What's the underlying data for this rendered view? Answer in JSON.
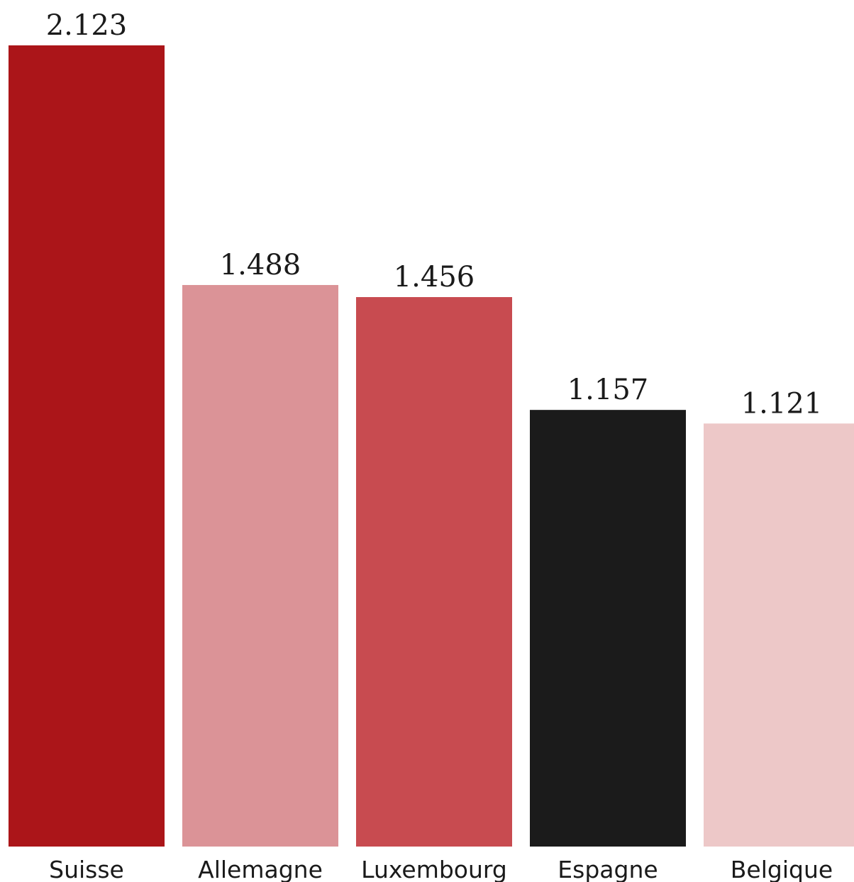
{
  "chart_data": {
    "type": "bar",
    "categories": [
      "Suisse",
      "Allemagne",
      "Luxembourg",
      "Espagne",
      "Belgique"
    ],
    "values": [
      2123,
      1488,
      1456,
      1157,
      1121
    ],
    "value_labels": [
      "2.123",
      "1.488",
      "1.456",
      "1.157",
      "1.121"
    ],
    "colors": [
      "#ab1519",
      "#db9397",
      "#c84b50",
      "#1b1b1b",
      "#edc8c8"
    ],
    "ylim": [
      0,
      2123
    ],
    "grid": false,
    "legend": "none"
  }
}
